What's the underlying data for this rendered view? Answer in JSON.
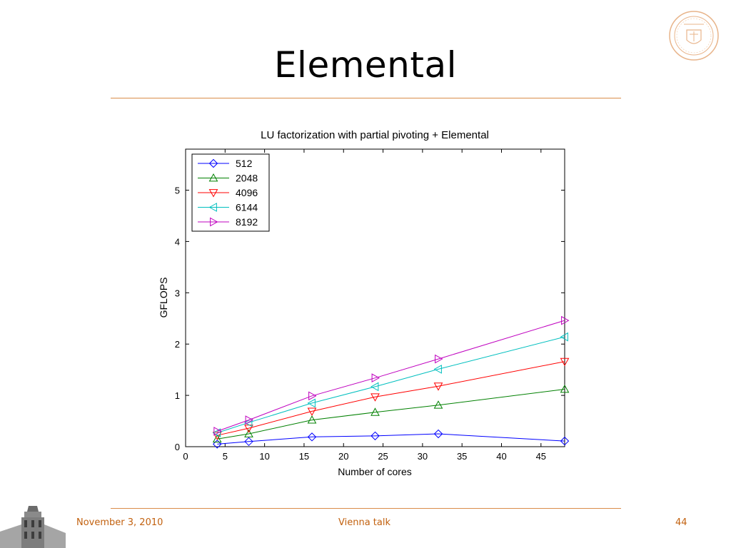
{
  "slide": {
    "title": "Elemental",
    "footer_date": "November 3, 2010",
    "footer_talk": "Vienna talk",
    "footer_page": "44"
  },
  "colors": {
    "accent": "#c2610f",
    "rule": "#d98c4a"
  },
  "chart_data": {
    "type": "line",
    "title": "LU factorization with partial pivoting + Elemental",
    "xlabel": "Number of cores",
    "ylabel": "GFLOPS",
    "xlim": [
      0,
      48
    ],
    "ylim": [
      0,
      5.8
    ],
    "xticks": [
      0,
      5,
      10,
      15,
      20,
      25,
      30,
      35,
      40,
      45
    ],
    "yticks": [
      0,
      1,
      2,
      3,
      4,
      5
    ],
    "grid": false,
    "legend_position": "top-left",
    "x": [
      4,
      8,
      16,
      24,
      32,
      48
    ],
    "series": [
      {
        "name": "512",
        "color": "#0000ff",
        "marker": "diamond",
        "values": [
          0.05,
          0.1,
          0.19,
          0.21,
          0.25,
          0.11
        ]
      },
      {
        "name": "2048",
        "color": "#008000",
        "marker": "triangle-up",
        "values": [
          0.15,
          0.25,
          0.52,
          0.67,
          0.81,
          1.12
        ]
      },
      {
        "name": "4096",
        "color": "#ff0000",
        "marker": "triangle-down",
        "values": [
          0.22,
          0.36,
          0.69,
          0.97,
          1.18,
          1.66
        ]
      },
      {
        "name": "6144",
        "color": "#00bfbf",
        "marker": "triangle-left",
        "values": [
          0.27,
          0.47,
          0.85,
          1.17,
          1.51,
          2.14
        ]
      },
      {
        "name": "8192",
        "color": "#bf00bf",
        "marker": "triangle-right",
        "values": [
          0.3,
          0.52,
          0.99,
          1.34,
          1.71,
          2.46
        ]
      }
    ]
  }
}
